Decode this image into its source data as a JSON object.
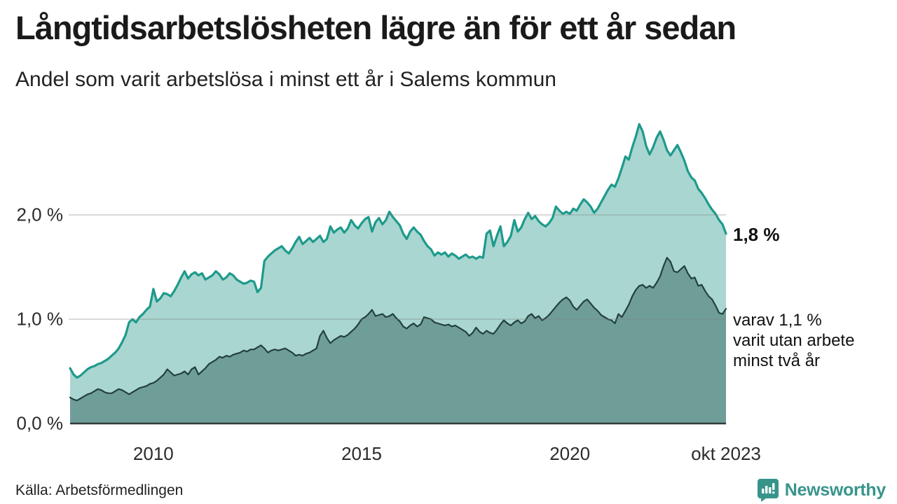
{
  "header": {
    "title": "Långtidsarbetslösheten lägre än för ett år sedan",
    "subtitle": "Andel som varit arbetslösa i minst ett år i Salems kommun"
  },
  "chart_data": {
    "type": "area",
    "title": "Andel som varit arbetslösa i minst ett år i Salems kommun",
    "x_start": "2008-01",
    "x_end": "2023-10",
    "x_step_months": 1,
    "ylim": [
      0,
      3.0
    ],
    "grid": "horizontal",
    "y_ticks": [
      {
        "label": "0,0 %",
        "value": 0
      },
      {
        "label": "1,0 %",
        "value": 1
      },
      {
        "label": "2,0 %",
        "value": 2
      }
    ],
    "x_ticks": [
      {
        "label": "2010",
        "index": 24
      },
      {
        "label": "2015",
        "index": 84
      },
      {
        "label": "2020",
        "index": 144
      },
      {
        "label": "okt 2023",
        "index": 189
      }
    ],
    "series": [
      {
        "name": "Andel som varit arbetslösa minst ett år",
        "end_value": 1.8,
        "line_color": "#1d9a8b",
        "fill_color": "#a9d6d0",
        "values": [
          0.53,
          0.47,
          0.44,
          0.46,
          0.49,
          0.52,
          0.54,
          0.55,
          0.57,
          0.58,
          0.6,
          0.62,
          0.65,
          0.68,
          0.72,
          0.78,
          0.85,
          0.97,
          1.0,
          0.97,
          1.02,
          1.05,
          1.09,
          1.12,
          1.29,
          1.17,
          1.2,
          1.25,
          1.24,
          1.22,
          1.27,
          1.33,
          1.4,
          1.46,
          1.39,
          1.43,
          1.45,
          1.42,
          1.44,
          1.38,
          1.4,
          1.42,
          1.46,
          1.43,
          1.38,
          1.4,
          1.44,
          1.42,
          1.38,
          1.36,
          1.34,
          1.35,
          1.37,
          1.36,
          1.26,
          1.3,
          1.56,
          1.6,
          1.63,
          1.66,
          1.68,
          1.7,
          1.66,
          1.63,
          1.68,
          1.74,
          1.79,
          1.72,
          1.75,
          1.78,
          1.74,
          1.77,
          1.8,
          1.74,
          1.77,
          1.89,
          1.83,
          1.86,
          1.88,
          1.83,
          1.87,
          1.95,
          1.9,
          1.87,
          1.92,
          1.96,
          1.98,
          1.84,
          1.93,
          1.97,
          1.91,
          1.95,
          2.03,
          1.98,
          1.94,
          1.9,
          1.82,
          1.77,
          1.84,
          1.88,
          1.84,
          1.81,
          1.75,
          1.7,
          1.67,
          1.61,
          1.64,
          1.62,
          1.64,
          1.6,
          1.63,
          1.61,
          1.58,
          1.6,
          1.62,
          1.59,
          1.6,
          1.58,
          1.6,
          1.59,
          1.82,
          1.85,
          1.7,
          1.8,
          1.89,
          1.7,
          1.74,
          1.8,
          1.95,
          1.84,
          1.88,
          1.96,
          2.02,
          1.96,
          1.99,
          1.94,
          1.91,
          1.89,
          1.92,
          1.97,
          2.08,
          2.04,
          2.01,
          2.03,
          2.01,
          2.06,
          2.04,
          2.1,
          2.15,
          2.12,
          2.08,
          2.02,
          2.06,
          2.12,
          2.18,
          2.24,
          2.29,
          2.27,
          2.35,
          2.45,
          2.56,
          2.53,
          2.65,
          2.75,
          2.87,
          2.8,
          2.66,
          2.58,
          2.65,
          2.74,
          2.8,
          2.72,
          2.62,
          2.57,
          2.62,
          2.67,
          2.6,
          2.52,
          2.42,
          2.36,
          2.33,
          2.25,
          2.21,
          2.16,
          2.1,
          2.05,
          2.01,
          1.95,
          1.91,
          1.82
        ]
      },
      {
        "name": "varav utan arbete minst två år",
        "end_value": 1.1,
        "line_color": "#24403c",
        "fill_color": "#6f9e99",
        "values": [
          0.25,
          0.23,
          0.22,
          0.24,
          0.26,
          0.28,
          0.29,
          0.31,
          0.33,
          0.32,
          0.3,
          0.29,
          0.29,
          0.31,
          0.33,
          0.32,
          0.3,
          0.28,
          0.3,
          0.32,
          0.34,
          0.35,
          0.36,
          0.38,
          0.39,
          0.41,
          0.44,
          0.47,
          0.52,
          0.49,
          0.46,
          0.47,
          0.48,
          0.5,
          0.47,
          0.52,
          0.54,
          0.47,
          0.5,
          0.53,
          0.57,
          0.59,
          0.61,
          0.64,
          0.63,
          0.65,
          0.64,
          0.66,
          0.67,
          0.68,
          0.7,
          0.69,
          0.71,
          0.71,
          0.73,
          0.75,
          0.72,
          0.68,
          0.7,
          0.71,
          0.7,
          0.71,
          0.72,
          0.7,
          0.68,
          0.65,
          0.66,
          0.65,
          0.67,
          0.68,
          0.7,
          0.72,
          0.84,
          0.89,
          0.82,
          0.77,
          0.8,
          0.82,
          0.84,
          0.83,
          0.85,
          0.88,
          0.91,
          0.95,
          1.0,
          1.02,
          1.05,
          1.09,
          1.03,
          1.04,
          1.05,
          1.02,
          1.03,
          1.05,
          1.01,
          0.98,
          0.93,
          0.91,
          0.94,
          0.96,
          0.93,
          0.95,
          1.02,
          1.01,
          1.0,
          0.97,
          0.96,
          0.95,
          0.94,
          0.95,
          0.93,
          0.94,
          0.92,
          0.9,
          0.88,
          0.84,
          0.87,
          0.92,
          0.88,
          0.86,
          0.89,
          0.87,
          0.86,
          0.9,
          0.95,
          0.99,
          0.96,
          0.94,
          0.97,
          0.99,
          0.96,
          0.98,
          1.03,
          1.05,
          1.01,
          1.03,
          0.99,
          1.01,
          1.04,
          1.08,
          1.12,
          1.16,
          1.19,
          1.21,
          1.18,
          1.12,
          1.09,
          1.13,
          1.17,
          1.19,
          1.15,
          1.11,
          1.08,
          1.04,
          1.02,
          1.0,
          0.99,
          0.96,
          1.05,
          1.02,
          1.08,
          1.14,
          1.22,
          1.28,
          1.32,
          1.33,
          1.3,
          1.32,
          1.3,
          1.35,
          1.41,
          1.51,
          1.59,
          1.55,
          1.46,
          1.45,
          1.48,
          1.51,
          1.44,
          1.39,
          1.4,
          1.32,
          1.33,
          1.27,
          1.22,
          1.19,
          1.13,
          1.06,
          1.05,
          1.1
        ]
      }
    ],
    "annotations": {
      "end_value_label": "1,8 %",
      "secondary_lines": [
        "varav 1,1 %",
        "varit utan arbete",
        "minst två år"
      ]
    }
  },
  "footer": {
    "source": "Källa: Arbetsförmedlingen",
    "brand": "Newsworthy"
  },
  "colors": {
    "primary_line": "#1d9a8b",
    "primary_fill": "#a9d6d0",
    "secondary_line": "#24403c",
    "secondary_fill": "#6f9e99",
    "baseline": "#323b39",
    "gridline": "rgba(125,135,132,0.40)",
    "brand_teal": "#38948b"
  }
}
